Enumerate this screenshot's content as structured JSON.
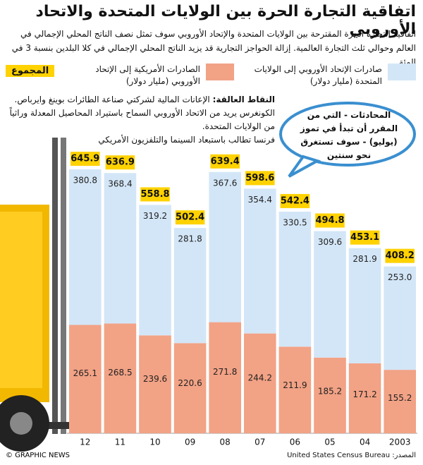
{
  "chart_data": {
    "type": "stacked-bar",
    "title": "اتفاقية التجارة الحرة بين الولايات المتحدة والاتحاد الأوروبي",
    "subtitle": "اتفاقية التجارة الحرة المقترحة بين الولايات المتحدة والإتحاد الأوروبي سوف تمثل نصف الناتج المحلي الإجمالي في العالم وحوالي ثلث التجارة العالمية. إزالة الحواجز التجارية قد يزيد الناتج المحلي الإجمالي في كلا البلدين بنسبة 3 في المئة",
    "categories": [
      "12",
      "11",
      "10",
      "09",
      "08",
      "07",
      "06",
      "05",
      "04",
      "2003"
    ],
    "series": [
      {
        "name": "الصادرات الأمريكية إلى الإتحاد الأوروبي (مليار دولار)",
        "color": "#f2a285",
        "values": [
          265.1,
          268.5,
          239.6,
          220.6,
          271.8,
          244.2,
          211.9,
          185.2,
          171.2,
          155.2
        ]
      },
      {
        "name": "صادرات الإتحاد الأوروبي إلى الولايات المتحدة (مليار دولار)",
        "color": "#d3e6f7",
        "values": [
          380.8,
          368.4,
          319.2,
          281.8,
          367.6,
          354.4,
          330.5,
          309.6,
          281.9,
          253
        ],
        "value_labels": [
          "380.8",
          "368.4",
          "319.2",
          "281.8",
          "367.6",
          "354.4",
          "330.5",
          "309.6",
          "281.9",
          "253.0"
        ]
      }
    ],
    "totals": {
      "name": "المجموع",
      "color": "#ffd200",
      "values": [
        645.9,
        636.9,
        558.8,
        502.4,
        639.4,
        598.6,
        542.4,
        494.8,
        453.1,
        408.2
      ]
    },
    "notes": {
      "heading": "النقاط العالقة:",
      "items": [
        "الإعانات المالية لشركتي صناعة الطائرات بوينغ وايرباص.",
        "الكونغرس يريد من الاتحاد الأوروبي السماح باستيراد المحاصيل المعدلة وراثياً من الولايات المتحدة.",
        "فرنسا تطالب باستبعاد السينما والتلفزيون الأمريكي"
      ]
    },
    "annotation": "المحادثات - التي من المقرر أن تبدأ في تموز (يوليو) - سوف تستغرق نحو سنتين",
    "source_label": "المصدر:",
    "source": "United States Census Bureau",
    "credit": "© GRAPHIC NEWS"
  }
}
